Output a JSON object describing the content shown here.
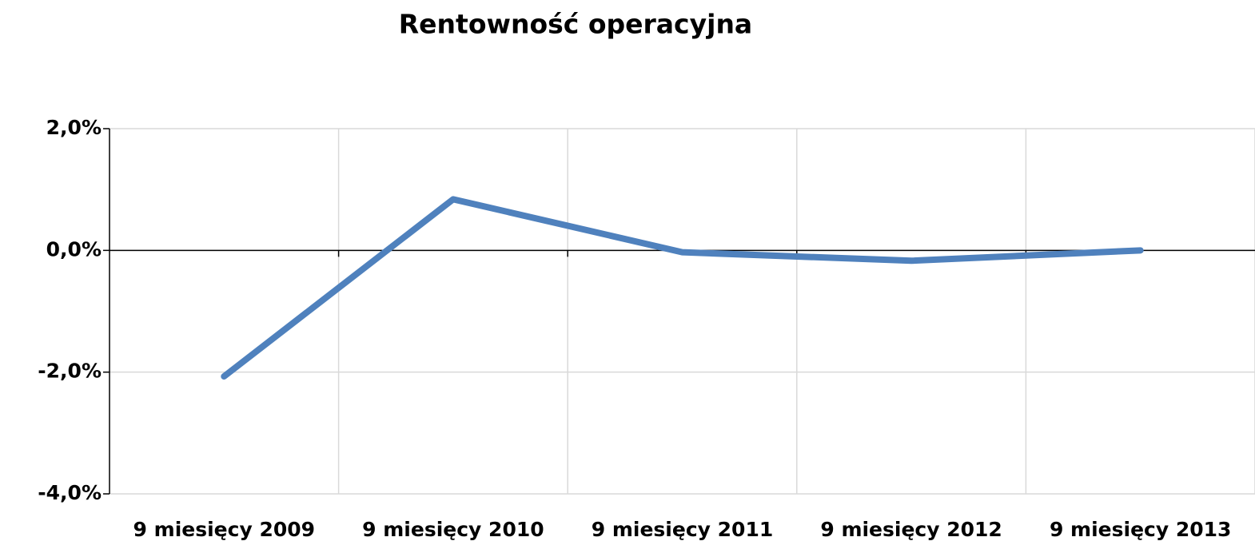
{
  "chart_data": {
    "type": "line",
    "title": "Rentowność operacyjna",
    "categories": [
      "9 miesięcy 2009",
      "9 miesięcy 2010",
      "9 miesięcy 2011",
      "9 miesięcy 2012",
      "9 miesięcy 2013"
    ],
    "series": [
      {
        "name": "Rentowność operacyjna",
        "color": "#4f81bd",
        "values": [
          -2.07,
          0.84,
          -0.03,
          -0.17,
          0.0
        ]
      }
    ],
    "ylim": [
      -4,
      2
    ],
    "yticks": [
      {
        "value": -4,
        "label": "-4,0%"
      },
      {
        "value": -2,
        "label": "-2,0%"
      },
      {
        "value": 0,
        "label": "0,0%"
      },
      {
        "value": 2,
        "label": "2,0%"
      }
    ],
    "grid": true
  }
}
